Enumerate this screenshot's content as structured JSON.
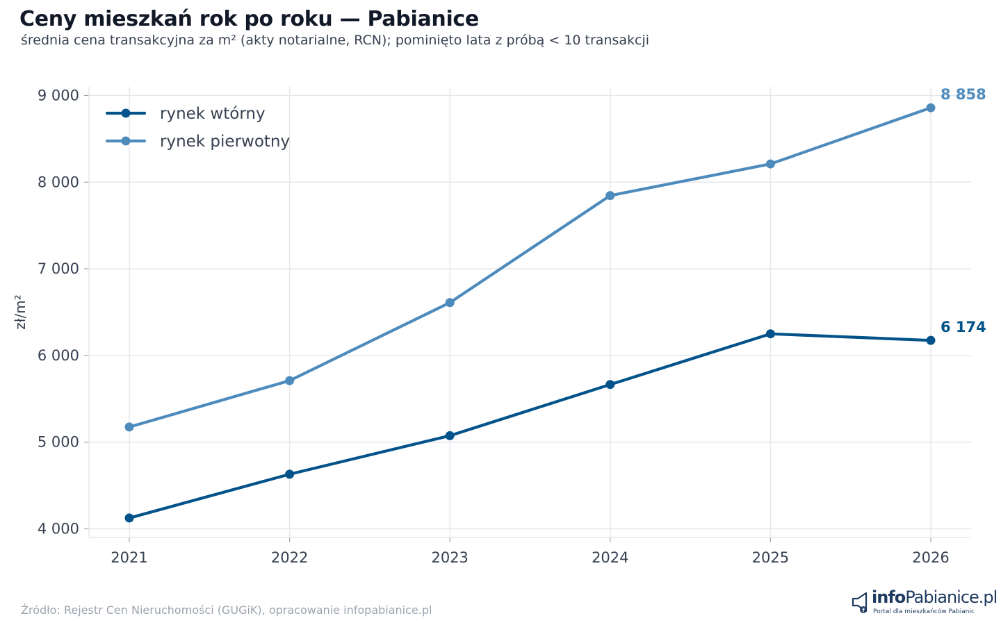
{
  "title": "Ceny mieszkań rok po roku — Pabianice",
  "subtitle": "średnia cena transakcyjna za m² (akty notarialne, RCN); pominięto lata z próbą < 10 transakcji",
  "source": "Źródło: Rejestr Cen Nieruchomości (GUGiK), opracowanie infopabianice.pl",
  "logo": {
    "brand_bold": "info",
    "brand_rest": "Pabianice.pl",
    "tagline": "Portal dla mieszkańców Pabianic"
  },
  "colors": {
    "secondary": "#03538a",
    "primary": "#4e8bbd",
    "grid": "#e5e7eb",
    "axis_text": "#374151"
  },
  "chart_data": {
    "type": "line",
    "title": "Ceny mieszkań rok po roku — Pabianice",
    "subtitle": "średnia cena transakcyjna za m² (akty notarialne, RCN); pominięto lata z próbą < 10 transakcji",
    "xlabel": "",
    "ylabel": "zł/m²",
    "x": [
      2021,
      2022,
      2023,
      2024,
      2025,
      2026
    ],
    "x_tick_labels": [
      "2021",
      "2022",
      "2023",
      "2024",
      "2025",
      "2026"
    ],
    "ylim": [
      3900,
      9100
    ],
    "y_ticks": [
      4000,
      5000,
      6000,
      7000,
      8000,
      9000
    ],
    "y_tick_labels": [
      "4 000",
      "5 000",
      "6 000",
      "7 000",
      "8 000",
      "9 000"
    ],
    "grid": true,
    "legend_position": "top-left",
    "series": [
      {
        "name": "rynek wtórny",
        "color": "#03538a",
        "values": [
          4125,
          4630,
          5075,
          5665,
          6250,
          6174
        ],
        "end_label": "6 174"
      },
      {
        "name": "rynek pierwotny",
        "color": "#4e8bbd",
        "values": [
          5175,
          5710,
          6610,
          7845,
          8210,
          8858
        ],
        "end_label": "8 858"
      }
    ]
  }
}
